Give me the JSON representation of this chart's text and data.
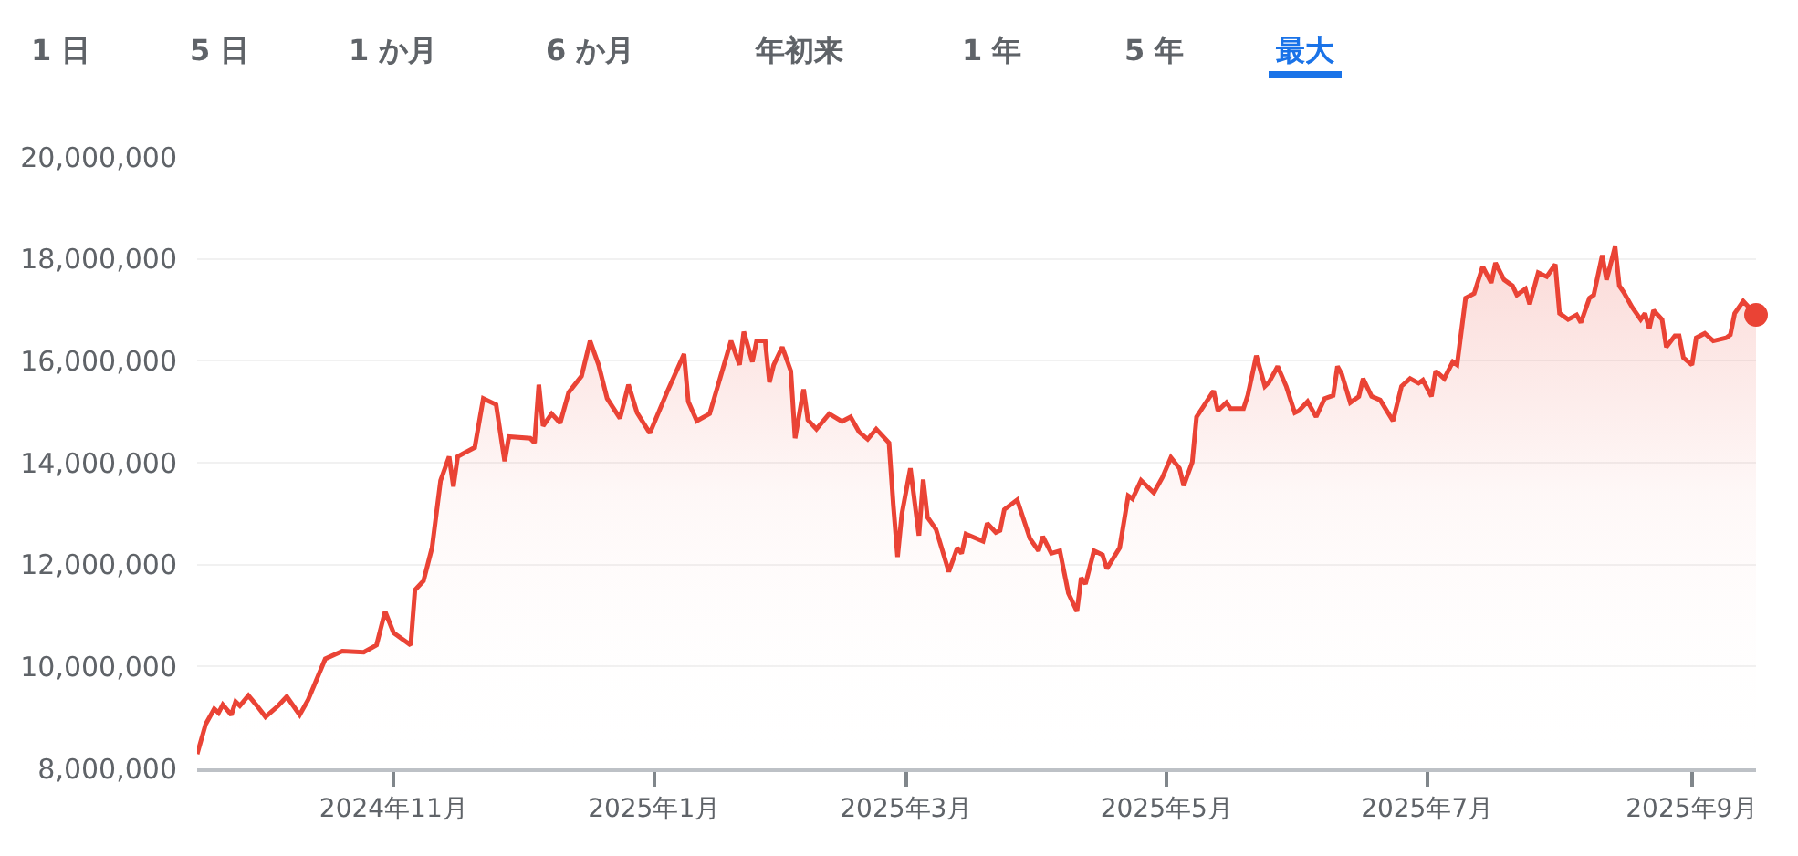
{
  "chart_data": {
    "type": "area",
    "annotations": [
      "1 日",
      "5 日",
      "1 か月",
      "6 か月",
      "年初来",
      "1 年",
      "5 年",
      "最大"
    ],
    "xlim": [
      "2024-09-16",
      "2025-09-16"
    ],
    "xticks": [
      {
        "value": "2024-11-01",
        "label": "2024年11月"
      },
      {
        "value": "2025-01-01",
        "label": "2025年1月"
      },
      {
        "value": "2025-03-01",
        "label": "2025年3月"
      },
      {
        "value": "2025-05-01",
        "label": "2025年5月"
      },
      {
        "value": "2025-07-01",
        "label": "2025年7月"
      },
      {
        "value": "2025-09-01",
        "label": "2025年9月"
      }
    ],
    "ylim": [
      8000000,
      20000000
    ],
    "yticks": [
      {
        "value": 8000000,
        "label": "8,000,000"
      },
      {
        "value": 10000000,
        "label": "10,000,000"
      },
      {
        "value": 12000000,
        "label": "12,000,000"
      },
      {
        "value": 14000000,
        "label": "14,000,000"
      },
      {
        "value": 16000000,
        "label": "16,000,000"
      },
      {
        "value": 18000000,
        "label": "18,000,000"
      },
      {
        "value": 20000000,
        "label": "20,000,000"
      }
    ],
    "grid": "y",
    "marker": "none",
    "line_style": "solid",
    "series": [
      {
        "color": "#ea4335",
        "x": [
          "2024-09-16",
          "2024-09-18",
          "2024-09-20",
          "2024-09-21",
          "2024-09-22",
          "2024-09-24",
          "2024-09-25",
          "2024-09-26",
          "2024-09-28",
          "2024-09-30",
          "2024-10-02",
          "2024-10-05",
          "2024-10-07",
          "2024-10-08",
          "2024-10-10",
          "2024-10-12",
          "2024-10-16",
          "2024-10-20",
          "2024-10-25",
          "2024-10-28",
          "2024-10-30",
          "2024-11-01",
          "2024-11-05",
          "2024-11-06",
          "2024-11-08",
          "2024-11-10",
          "2024-11-12",
          "2024-11-14",
          "2024-11-15",
          "2024-11-16",
          "2024-11-20",
          "2024-11-22",
          "2024-11-25",
          "2024-11-27",
          "2024-11-28",
          "2024-12-03",
          "2024-12-04",
          "2024-12-05",
          "2024-12-06",
          "2024-12-08",
          "2024-12-10",
          "2024-12-12",
          "2024-12-15",
          "2024-12-17",
          "2024-12-19",
          "2024-12-21",
          "2024-12-24",
          "2024-12-26",
          "2024-12-28",
          "2024-12-31",
          "2025-01-04",
          "2025-01-08",
          "2025-01-09",
          "2025-01-11",
          "2025-01-14",
          "2025-01-19",
          "2025-01-21",
          "2025-01-22",
          "2025-01-24",
          "2025-01-25",
          "2025-01-27",
          "2025-01-28",
          "2025-01-29",
          "2025-01-31",
          "2025-02-02",
          "2025-02-03",
          "2025-02-05",
          "2025-02-06",
          "2025-02-08",
          "2025-02-11",
          "2025-02-14",
          "2025-02-16",
          "2025-02-18",
          "2025-02-20",
          "2025-02-22",
          "2025-02-25",
          "2025-02-26",
          "2025-02-27",
          "2025-02-28",
          "2025-03-02",
          "2025-03-04",
          "2025-03-05",
          "2025-03-06",
          "2025-03-08",
          "2025-03-11",
          "2025-03-13",
          "2025-03-14",
          "2025-03-15",
          "2025-03-19",
          "2025-03-20",
          "2025-03-22",
          "2025-03-23",
          "2025-03-24",
          "2025-03-27",
          "2025-03-30",
          "2025-04-01",
          "2025-04-02",
          "2025-04-04",
          "2025-04-06",
          "2025-04-08",
          "2025-04-10",
          "2025-04-11",
          "2025-04-12",
          "2025-04-14",
          "2025-04-16",
          "2025-04-17",
          "2025-04-20",
          "2025-04-22",
          "2025-04-23",
          "2025-04-25",
          "2025-04-28",
          "2025-04-30",
          "2025-05-02",
          "2025-05-04",
          "2025-05-05",
          "2025-05-07",
          "2025-05-08",
          "2025-05-12",
          "2025-05-13",
          "2025-05-15",
          "2025-05-16",
          "2025-05-19",
          "2025-05-20",
          "2025-05-22",
          "2025-05-24",
          "2025-05-25",
          "2025-05-27",
          "2025-05-29",
          "2025-05-31",
          "2025-06-01",
          "2025-06-03",
          "2025-06-05",
          "2025-06-07",
          "2025-06-09",
          "2025-06-10",
          "2025-06-11",
          "2025-06-13",
          "2025-06-15",
          "2025-06-16",
          "2025-06-18",
          "2025-06-20",
          "2025-06-23",
          "2025-06-25",
          "2025-06-27",
          "2025-06-29",
          "2025-06-30",
          "2025-07-02",
          "2025-07-03",
          "2025-07-05",
          "2025-07-07",
          "2025-07-08",
          "2025-07-10",
          "2025-07-12",
          "2025-07-14",
          "2025-07-16",
          "2025-07-17",
          "2025-07-19",
          "2025-07-21",
          "2025-07-22",
          "2025-07-24",
          "2025-07-25",
          "2025-07-27",
          "2025-07-29",
          "2025-07-31",
          "2025-08-01",
          "2025-08-03",
          "2025-08-05",
          "2025-08-06",
          "2025-08-08",
          "2025-08-09",
          "2025-08-11",
          "2025-08-12",
          "2025-08-14",
          "2025-08-15",
          "2025-08-16",
          "2025-08-18",
          "2025-08-20",
          "2025-08-21",
          "2025-08-22",
          "2025-08-23",
          "2025-08-25",
          "2025-08-26",
          "2025-08-28",
          "2025-08-29",
          "2025-08-30",
          "2025-09-01",
          "2025-09-02",
          "2025-09-04",
          "2025-09-06",
          "2025-09-09",
          "2025-09-10",
          "2025-09-11",
          "2025-09-13",
          "2025-09-16"
        ],
        "values": [
          8280000,
          8870000,
          9170000,
          9090000,
          9250000,
          9050000,
          9310000,
          9230000,
          9430000,
          9230000,
          9010000,
          9230000,
          9410000,
          9290000,
          9050000,
          9350000,
          10150000,
          10300000,
          10280000,
          10420000,
          11080000,
          10660000,
          10420000,
          11500000,
          11680000,
          12330000,
          13650000,
          14120000,
          13530000,
          14120000,
          14300000,
          15260000,
          15140000,
          14030000,
          14510000,
          14480000,
          14390000,
          15530000,
          14720000,
          14960000,
          14780000,
          15380000,
          15700000,
          16390000,
          15920000,
          15260000,
          14870000,
          15530000,
          14980000,
          14580000,
          15380000,
          16130000,
          15200000,
          14820000,
          14960000,
          16390000,
          15920000,
          16570000,
          15980000,
          16390000,
          16390000,
          15580000,
          15920000,
          16270000,
          15800000,
          14480000,
          15440000,
          14840000,
          14660000,
          14960000,
          14810000,
          14900000,
          14600000,
          14460000,
          14660000,
          14390000,
          13170000,
          12150000,
          12990000,
          13890000,
          12570000,
          13670000,
          12930000,
          12690000,
          11860000,
          12330000,
          12220000,
          12600000,
          12460000,
          12810000,
          12630000,
          12670000,
          13080000,
          13270000,
          12510000,
          12270000,
          12550000,
          12220000,
          12270000,
          11440000,
          11080000,
          11740000,
          11620000,
          12270000,
          12190000,
          11920000,
          12330000,
          13350000,
          13290000,
          13650000,
          13410000,
          13710000,
          14100000,
          13890000,
          13550000,
          14010000,
          14900000,
          15410000,
          15020000,
          15180000,
          15060000,
          15060000,
          15320000,
          16100000,
          15500000,
          15580000,
          15890000,
          15500000,
          14980000,
          15020000,
          15200000,
          14900000,
          15260000,
          15320000,
          15890000,
          15740000,
          15180000,
          15300000,
          15650000,
          15300000,
          15230000,
          14820000,
          15500000,
          15650000,
          15560000,
          15620000,
          15300000,
          15800000,
          15650000,
          15980000,
          15920000,
          17230000,
          17320000,
          17850000,
          17530000,
          17920000,
          17590000,
          17470000,
          17290000,
          17410000,
          17110000,
          17730000,
          17650000,
          17890000,
          16930000,
          16810000,
          16900000,
          16750000,
          17230000,
          17290000,
          18070000,
          17590000,
          18240000,
          17470000,
          17350000,
          17050000,
          16810000,
          16930000,
          16630000,
          16990000,
          16810000,
          16270000,
          16490000,
          16490000,
          16060000,
          15920000,
          16450000,
          16540000,
          16390000,
          16450000,
          16510000,
          16930000,
          17170000,
          16900000
        ]
      },
      {
        "type": "scatter",
        "marker": "circle",
        "color": "#ea4335",
        "x": [
          "2025-09-16"
        ],
        "values": [
          16900000
        ]
      }
    ]
  }
}
